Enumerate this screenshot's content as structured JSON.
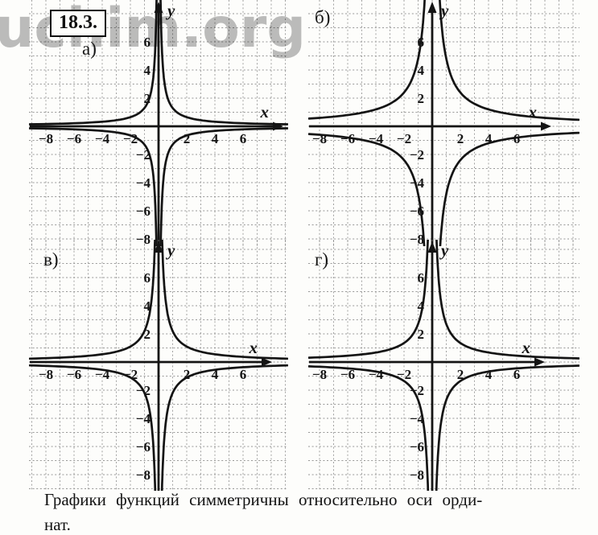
{
  "page": {
    "problem_number": "18.3.",
    "watermark": "uchim.org",
    "caption_line1": "Графики функций симметричны относительно оси орди-",
    "caption_line2": "нат."
  },
  "colors": {
    "ink": "#141414",
    "grid": "#7f7f7f",
    "watermark": "#bdbdbd",
    "paper": "#fdfdfb"
  },
  "chart_data": [
    {
      "id": "a",
      "panel_label": "а)",
      "type": "line",
      "title": "",
      "xlabel": "x",
      "ylabel": "y",
      "functions": [
        {
          "expr": "y = 1.3/x",
          "k": 1.3
        },
        {
          "expr": "y = −1.3/x",
          "k": -1.3
        }
      ],
      "xlim": [
        -9.1,
        9.2
      ],
      "ylim": [
        -8.5,
        9.0
      ],
      "x_ticks": [
        -8,
        -6,
        -4,
        -2,
        2,
        4,
        6
      ],
      "y_ticks": [
        6,
        4,
        2,
        -2,
        -4,
        -6,
        -8
      ],
      "grid": true,
      "legend": "none"
    },
    {
      "id": "b",
      "panel_label": "б)",
      "type": "line",
      "title": "",
      "xlabel": "x",
      "ylabel": "y",
      "functions": [
        {
          "expr": "y = 4.8/x",
          "k": 4.8
        },
        {
          "expr": "y = −4.8/x",
          "k": -4.8
        }
      ],
      "xlim": [
        -8.8,
        10.5
      ],
      "ylim": [
        -8.5,
        9.0
      ],
      "x_ticks": [
        -8,
        -6,
        -4,
        -2,
        2,
        4,
        6
      ],
      "y_ticks": [
        6,
        4,
        2,
        -2,
        -4,
        -6,
        -8
      ],
      "grid": true,
      "legend": "none"
    },
    {
      "id": "v",
      "panel_label": "в)",
      "type": "line",
      "title": "",
      "xlabel": "x",
      "ylabel": "y",
      "functions": [
        {
          "expr": "y = 2.2/x",
          "k": 2.2
        },
        {
          "expr": "y = −2.2/x",
          "k": -2.2
        }
      ],
      "xlim": [
        -9.1,
        9.2
      ],
      "ylim": [
        -9.1,
        8.6
      ],
      "x_ticks": [
        -8,
        -6,
        -4,
        -2,
        2,
        4,
        6
      ],
      "y_ticks": [
        6,
        4,
        2,
        -2,
        -4,
        -6,
        -8
      ],
      "grid": true,
      "legend": "none"
    },
    {
      "id": "g",
      "panel_label": "г)",
      "type": "line",
      "title": "",
      "xlabel": "x",
      "ylabel": "y",
      "functions": [
        {
          "expr": "y = 2.7/x",
          "k": 2.7
        },
        {
          "expr": "y = −2.7/x",
          "k": -2.7
        }
      ],
      "xlim": [
        -8.8,
        10.5
      ],
      "ylim": [
        -9.1,
        8.6
      ],
      "x_ticks": [
        -8,
        -6,
        -4,
        -2,
        2,
        4,
        6
      ],
      "y_ticks": [
        6,
        4,
        2,
        -2,
        -4,
        -6,
        -8
      ],
      "grid": true,
      "legend": "none"
    }
  ]
}
